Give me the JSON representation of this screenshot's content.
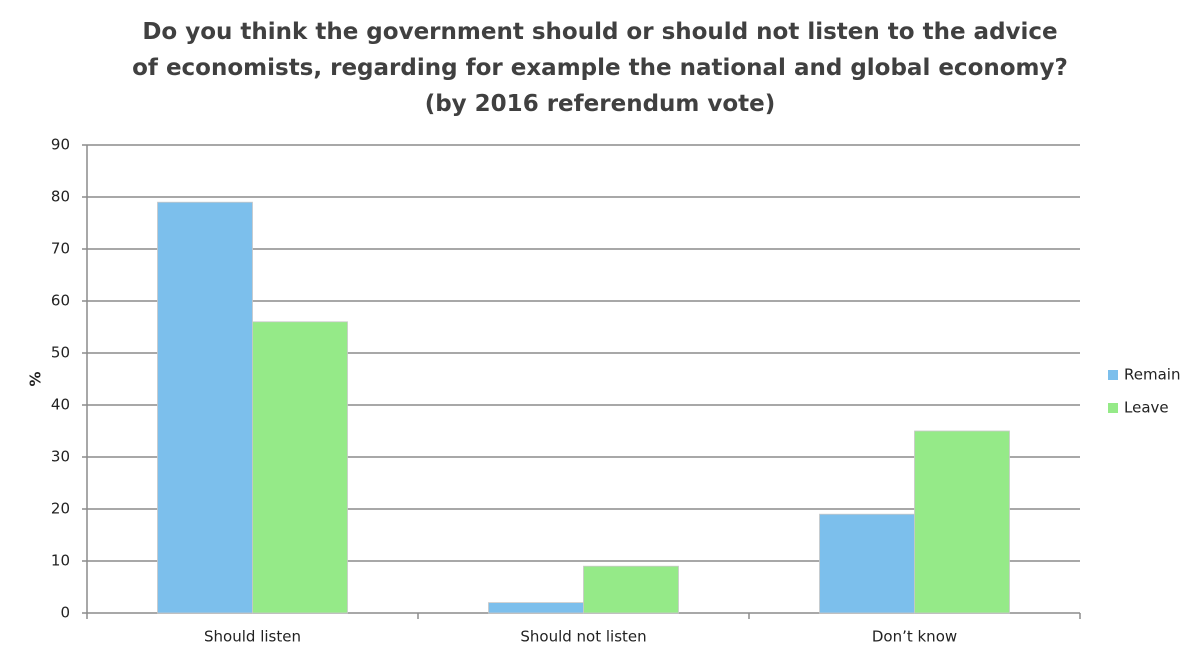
{
  "chart_data": {
    "type": "bar",
    "title": "Do you think the government should or should not listen to the advice of economists, regarding for example the national and global economy? (by 2016 referendum vote)",
    "y_label": "%",
    "categories": [
      "Should listen",
      "Should not listen",
      "Don’t know"
    ],
    "series": [
      {
        "name": "Remain",
        "color": "#7cbfec",
        "values": [
          79,
          2,
          19
        ]
      },
      {
        "name": "Leave",
        "color": "#95ea88",
        "values": [
          56,
          9,
          35
        ]
      }
    ],
    "ylim": [
      0,
      90
    ],
    "yticks": [
      0,
      10,
      20,
      30,
      40,
      50,
      60,
      70,
      80,
      90
    ],
    "grid": true,
    "legend": "right"
  }
}
